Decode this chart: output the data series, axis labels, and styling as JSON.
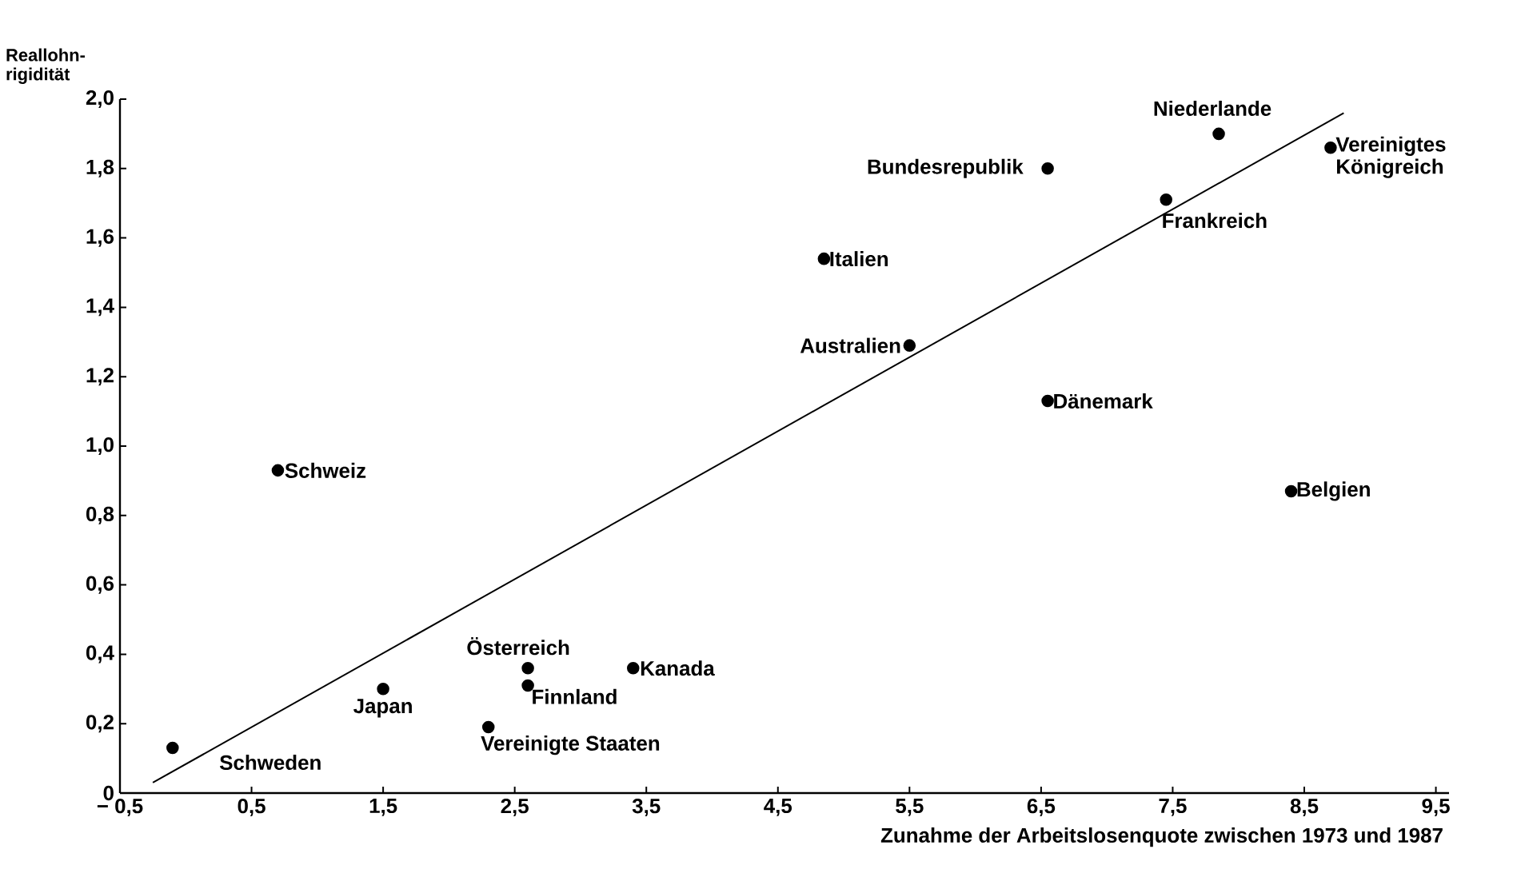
{
  "chart_data": {
    "type": "scatter",
    "xlabel": "Zunahme der Arbeitslosenquote zwischen 1973 und 1987",
    "ylabel": "Reallohn-rigidität",
    "xlim": [
      -0.5,
      9.6
    ],
    "ylim": [
      0,
      2.0
    ],
    "xticks": [
      {
        "value": -0.5,
        "label": "− 0,5"
      },
      {
        "value": 0.5,
        "label": "0,5"
      },
      {
        "value": 1.5,
        "label": "1,5"
      },
      {
        "value": 2.5,
        "label": "2,5"
      },
      {
        "value": 3.5,
        "label": "3,5"
      },
      {
        "value": 4.5,
        "label": "4,5"
      },
      {
        "value": 5.5,
        "label": "5,5"
      },
      {
        "value": 6.5,
        "label": "6,5"
      },
      {
        "value": 7.5,
        "label": "7,5"
      },
      {
        "value": 8.5,
        "label": "8,5"
      },
      {
        "value": 9.5,
        "label": "9,5"
      }
    ],
    "yticks": [
      0,
      {
        "value": 0.2,
        "label": "0,2"
      },
      {
        "value": 0.4,
        "label": "0,4"
      },
      {
        "value": 0.6,
        "label": "0,6"
      },
      {
        "value": 0.8,
        "label": "0,8"
      },
      {
        "value": 1.0,
        "label": "1,0"
      },
      {
        "value": 1.2,
        "label": "1,2"
      },
      {
        "value": 1.4,
        "label": "1,4"
      },
      {
        "value": 1.6,
        "label": "1,6"
      },
      {
        "value": 1.8,
        "label": "1,8"
      },
      {
        "value": 2.0,
        "label": "2,0"
      }
    ],
    "series": [
      {
        "type": "scatter",
        "color": "#000000",
        "marker": "circle",
        "x": [
          -0.1,
          0.7,
          1.5,
          2.6,
          2.6,
          2.3,
          3.4,
          4.85,
          5.5,
          6.55,
          6.55,
          7.45,
          7.85,
          8.7,
          8.4
        ],
        "values": [
          0.13,
          0.93,
          0.3,
          0.36,
          0.31,
          0.19,
          0.36,
          1.54,
          1.29,
          1.8,
          1.13,
          1.71,
          1.9,
          1.86,
          0.87
        ]
      },
      {
        "type": "line",
        "color": "#000000",
        "marker": "none",
        "x": [
          -0.25,
          8.8
        ],
        "values": [
          0.03,
          1.96
        ]
      }
    ],
    "annotations": [
      {
        "text": "Schweden",
        "x": -0.1,
        "y": 0.13
      },
      {
        "text": "Schweiz",
        "x": 0.7,
        "y": 0.93
      },
      {
        "text": "Japan",
        "x": 1.5,
        "y": 0.3
      },
      {
        "text": "Österreich",
        "x": 2.6,
        "y": 0.36
      },
      {
        "text": "Finnland",
        "x": 2.6,
        "y": 0.31
      },
      {
        "text": "Vereinigte Staaten",
        "x": 2.3,
        "y": 0.19
      },
      {
        "text": "Kanada",
        "x": 3.4,
        "y": 0.36
      },
      {
        "text": "Italien",
        "x": 4.85,
        "y": 1.54
      },
      {
        "text": "Australien",
        "x": 5.5,
        "y": 1.29
      },
      {
        "text": "Bundesrepublik",
        "x": 6.55,
        "y": 1.8
      },
      {
        "text": "Dänemark",
        "x": 6.55,
        "y": 1.13
      },
      {
        "text": "Frankreich",
        "x": 7.45,
        "y": 1.71
      },
      {
        "text": "Niederlande",
        "x": 7.85,
        "y": 1.9
      },
      {
        "text": "Vereinigtes Königreich",
        "x": 8.7,
        "y": 1.86
      },
      {
        "text": "Belgien",
        "x": 8.4,
        "y": 0.87
      }
    ]
  }
}
